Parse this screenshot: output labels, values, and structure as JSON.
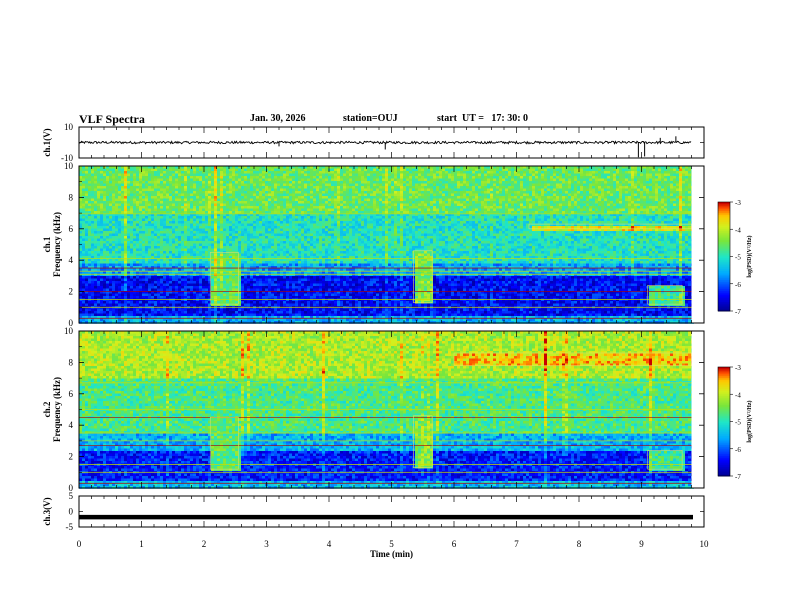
{
  "header": {
    "title": "VLF Spectra",
    "date": "Jan. 30, 2026",
    "station": "station=OUJ",
    "start": "start  UT =   17: 30: 0"
  },
  "chart_data": [
    {
      "type": "line",
      "id": "ch1_waveform",
      "ylabel": "ch.1(V)",
      "ylim": [
        -10,
        10
      ],
      "yticks": [
        "10",
        "-10"
      ],
      "baseline": 0,
      "noise_amplitude": 0.8,
      "x_range": [
        0,
        9.8
      ],
      "spikes": [
        {
          "t": 3.2,
          "value": -2.5
        },
        {
          "t": 4.9,
          "value": -4.5
        },
        {
          "t": 8.95,
          "value": -9.5
        },
        {
          "t": 9.05,
          "value": -9
        },
        {
          "t": 9.3,
          "value": 3
        },
        {
          "t": 9.55,
          "value": 4
        }
      ]
    },
    {
      "type": "heatmap",
      "id": "ch1_spectrogram",
      "ylabel_top": "ch.1",
      "ylabel": "Frequency (kHz)",
      "ylim": [
        0,
        10
      ],
      "yticks": [
        "0",
        "2",
        "4",
        "6",
        "8",
        "10"
      ],
      "x_range": [
        0,
        9.8
      ],
      "colorbar": {
        "label": "log(PSD)(V²/Hz)",
        "range": [
          -7,
          -3
        ],
        "ticks": [
          "-3",
          "-4",
          "-5",
          "-6",
          "-7"
        ]
      },
      "bands_kHz": [
        {
          "from": 0,
          "to": 0.5,
          "log_psd": -5.5
        },
        {
          "from": 0.5,
          "to": 3,
          "log_psd": -6.4
        },
        {
          "from": 3,
          "to": 3.8,
          "log_psd": -5.6
        },
        {
          "from": 3.8,
          "to": 7,
          "log_psd": -5.0
        },
        {
          "from": 7,
          "to": 10,
          "log_psd": -4.5
        }
      ],
      "lines_kHz": [
        0.3,
        1.0,
        1.5,
        2.0,
        3.1,
        3.3,
        3.5,
        4.1,
        6.95
      ],
      "events": [
        {
          "t_start": 2.1,
          "t_end": 2.55,
          "f_from": 1.2,
          "f_to": 4.5,
          "log_psd": -4.6
        },
        {
          "t_start": 5.35,
          "t_end": 5.65,
          "f_from": 1.3,
          "f_to": 4.6,
          "log_psd": -4.4
        },
        {
          "t_start": 9.1,
          "t_end": 9.65,
          "f_from": 1.2,
          "f_to": 2.4,
          "log_psd": -4.8
        },
        {
          "t_start": 7.2,
          "t_end": 9.8,
          "f_from": 6.0,
          "f_to": 6.3,
          "log_psd": -3.8
        }
      ]
    },
    {
      "type": "heatmap",
      "id": "ch2_spectrogram",
      "ylabel_top": "ch.2",
      "ylabel": "Frequency (kHz)",
      "ylim": [
        0,
        10
      ],
      "yticks": [
        "0",
        "2",
        "4",
        "6",
        "8",
        "10"
      ],
      "x_range": [
        0,
        9.8
      ],
      "colorbar": {
        "label": "log(PSD)(V²/Hz)",
        "range": [
          -7,
          -3
        ],
        "ticks": [
          "-3",
          "-4",
          "-5",
          "-6",
          "-7"
        ]
      },
      "bands_kHz": [
        {
          "from": 0,
          "to": 0.5,
          "log_psd": -5.4
        },
        {
          "from": 0.5,
          "to": 2.5,
          "log_psd": -6.3
        },
        {
          "from": 2.5,
          "to": 3.6,
          "log_psd": -5.5
        },
        {
          "from": 3.6,
          "to": 7,
          "log_psd": -4.7
        },
        {
          "from": 7,
          "to": 10,
          "log_psd": -4.1
        }
      ],
      "lines_kHz": [
        0.3,
        1.0,
        1.5,
        2.7,
        3.0,
        3.5,
        4.5,
        5.0,
        6.7
      ],
      "events": [
        {
          "t_start": 2.1,
          "t_end": 2.55,
          "f_from": 1.2,
          "f_to": 4.5,
          "log_psd": -4.6
        },
        {
          "t_start": 5.35,
          "t_end": 5.65,
          "f_from": 1.3,
          "f_to": 4.6,
          "log_psd": -4.4
        },
        {
          "t_start": 6.0,
          "t_end": 9.8,
          "f_from": 7.8,
          "f_to": 8.6,
          "log_psd": -3.6
        },
        {
          "t_start": 9.1,
          "t_end": 9.65,
          "f_from": 1.2,
          "f_to": 2.4,
          "log_psd": -4.8
        }
      ]
    },
    {
      "type": "line",
      "id": "ch3_waveform",
      "ylabel": "ch.3(V)",
      "ylim": [
        -5,
        5
      ],
      "yticks": [
        "5",
        "0",
        "-5"
      ],
      "baseline": -1.8,
      "x_range": [
        0,
        9.8
      ],
      "xlabel": "Time (min)",
      "xlim": [
        0,
        10
      ],
      "xticks": [
        "0",
        "1",
        "2",
        "3",
        "4",
        "5",
        "6",
        "7",
        "8",
        "9",
        "10"
      ]
    }
  ]
}
